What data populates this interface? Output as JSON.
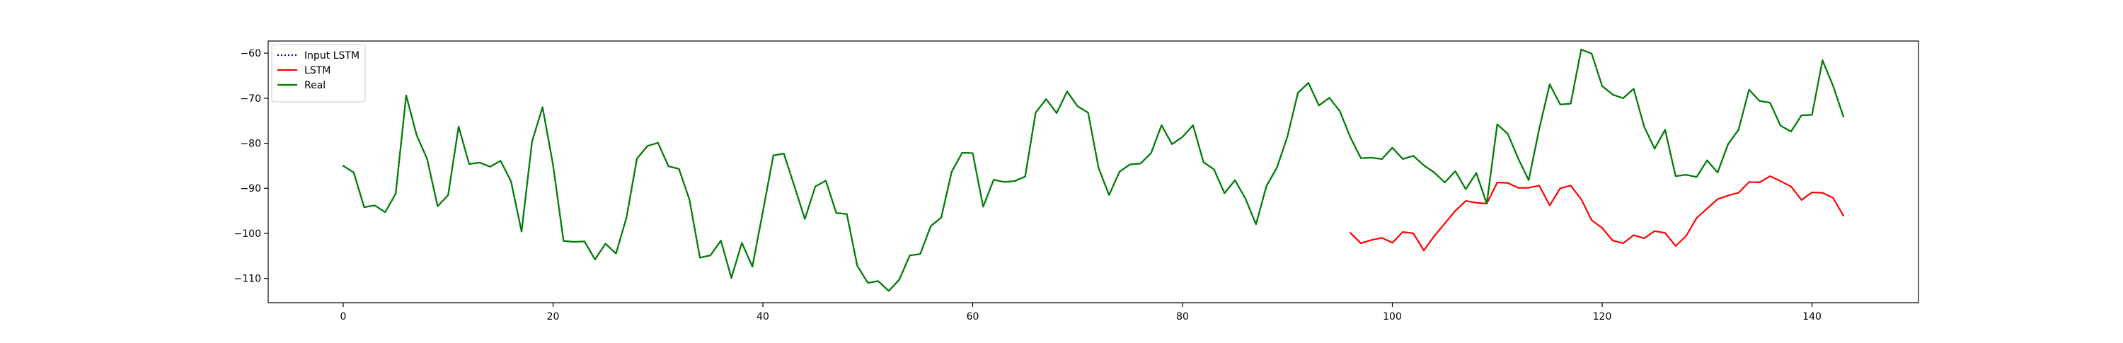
{
  "chart_data": {
    "type": "line",
    "title": "",
    "xlabel": "",
    "ylabel": "",
    "xlim": [
      -7.15,
      150.15
    ],
    "ylim": [
      -115.4,
      -57.3
    ],
    "xticks": [
      0,
      20,
      40,
      60,
      80,
      100,
      120,
      140
    ],
    "yticks": [
      -110,
      -100,
      -90,
      -80,
      -70,
      -60
    ],
    "xtick_labels": [
      "0",
      "20",
      "40",
      "60",
      "80",
      "100",
      "120",
      "140"
    ],
    "ytick_labels": [
      "−110",
      "−100",
      "−90",
      "−80",
      "−70",
      "−60"
    ],
    "grid": false,
    "legend_position": "top-left",
    "series": [
      {
        "name": "Input LSTM",
        "color": "#0000bf",
        "style": "dotted",
        "x_start": 0,
        "values": [
          -85,
          -86.5,
          -94.2,
          -93.8,
          -95.3,
          -91.2,
          -69.4,
          -78.2,
          -83.5,
          -94,
          -91.5,
          -76.3,
          -84.6,
          -84.3,
          -85.2,
          -83.9,
          -88.5,
          -99.6,
          -79.6,
          -72,
          -84.8,
          -101.7,
          -101.9,
          -101.8,
          -105.8,
          -102.3,
          -104.5,
          -96.5,
          -83.4,
          -80.6,
          -79.9,
          -85.1,
          -85.7,
          -92.5,
          -105.4,
          -104.9,
          -101.6,
          -109.9,
          -102.1,
          -107.4,
          -95.2,
          -82.7,
          -82.3,
          -89.5,
          -96.8,
          -89.6,
          -88.3,
          -95.5,
          -95.7,
          -107.2,
          -111,
          -110.6,
          -112.8,
          -110.3,
          -104.9,
          -104.6,
          -98.4,
          -96.5,
          -86.3,
          -82.1,
          -82.2,
          -94.1,
          -88.1,
          -88.6,
          -88.4,
          -87.4,
          -73.2,
          -70.2,
          -73.3,
          -68.5,
          -71.8,
          -73.2,
          -85.5,
          -91.5,
          -86.3,
          -84.7,
          -84.5,
          -82.2,
          -76,
          -80.2,
          -78.6,
          -76,
          -84.2,
          -85.8,
          -91.1,
          -88.2,
          -92.3,
          -98,
          -89.5,
          -85.4,
          -78.5,
          -68.8,
          -66.6,
          -71.6,
          -69.9,
          -72.9,
          -78.7,
          -83.3,
          -83.2,
          -83.5,
          -81,
          -83.5,
          -82.8,
          -84.9,
          -86.5,
          -88.7,
          -86.2,
          -90.2,
          -86.6,
          -93.4,
          -75.8,
          -77.9,
          -83.4,
          -88.2,
          -76.8,
          -66.9,
          -71.4,
          -71.2,
          -59.2,
          -60.1,
          -67.3,
          -69.2,
          -70,
          -67.9,
          -76.3,
          -81.2,
          -77,
          -87.3,
          -87,
          -87.5,
          -83.8,
          -86.5,
          -80.2,
          -77,
          -68.1,
          -70.6,
          -71,
          -76.1,
          -77.4,
          -73.8,
          -73.7,
          -61.6,
          -67.2,
          -74.1
        ]
      },
      {
        "name": "LSTM",
        "color": "#ff0000",
        "style": "solid",
        "x_start": 96,
        "values": [
          -99.9,
          -102.2,
          -101.5,
          -101,
          -102.1,
          -99.7,
          -100,
          -103.8,
          -100.6,
          -97.8,
          -95,
          -92.8,
          -93.2,
          -93.4,
          -88.7,
          -88.8,
          -89.9,
          -89.9,
          -89.4,
          -93.8,
          -90,
          -89.4,
          -92.4,
          -97.1,
          -98.8,
          -101.6,
          -102.2,
          -100.4,
          -101.1,
          -99.5,
          -99.9,
          -102.8,
          -100.6,
          -96.6,
          -94.5,
          -92.4,
          -91.6,
          -91,
          -88.6,
          -88.7,
          -87.3,
          -88.4,
          -89.6,
          -92.6,
          -90.9,
          -91,
          -92.1,
          -96.1
        ]
      },
      {
        "name": "Real",
        "color": "#008000",
        "style": "solid",
        "x_start": 0,
        "values": [
          -85,
          -86.5,
          -94.2,
          -93.8,
          -95.3,
          -91.2,
          -69.4,
          -78.2,
          -83.5,
          -94,
          -91.5,
          -76.3,
          -84.6,
          -84.3,
          -85.2,
          -83.9,
          -88.5,
          -99.6,
          -79.6,
          -72,
          -84.8,
          -101.7,
          -101.9,
          -101.8,
          -105.8,
          -102.3,
          -104.5,
          -96.5,
          -83.4,
          -80.6,
          -79.9,
          -85.1,
          -85.7,
          -92.5,
          -105.4,
          -104.9,
          -101.6,
          -109.9,
          -102.1,
          -107.4,
          -95.2,
          -82.7,
          -82.3,
          -89.5,
          -96.8,
          -89.6,
          -88.3,
          -95.5,
          -95.7,
          -107.2,
          -111,
          -110.6,
          -112.8,
          -110.3,
          -104.9,
          -104.6,
          -98.4,
          -96.5,
          -86.3,
          -82.1,
          -82.2,
          -94.1,
          -88.1,
          -88.6,
          -88.4,
          -87.4,
          -73.2,
          -70.2,
          -73.3,
          -68.5,
          -71.8,
          -73.2,
          -85.5,
          -91.5,
          -86.3,
          -84.7,
          -84.5,
          -82.2,
          -76,
          -80.2,
          -78.6,
          -76,
          -84.2,
          -85.8,
          -91.1,
          -88.2,
          -92.3,
          -98,
          -89.5,
          -85.4,
          -78.5,
          -68.8,
          -66.6,
          -71.6,
          -69.9,
          -72.9,
          -78.7,
          -83.3,
          -83.2,
          -83.5,
          -81,
          -83.5,
          -82.8,
          -84.9,
          -86.5,
          -88.7,
          -86.2,
          -90.2,
          -86.6,
          -93.4,
          -75.8,
          -77.9,
          -83.4,
          -88.2,
          -76.8,
          -66.9,
          -71.4,
          -71.2,
          -59.2,
          -60.1,
          -67.3,
          -69.2,
          -70,
          -67.9,
          -76.3,
          -81.2,
          -77,
          -87.3,
          -87,
          -87.5,
          -83.8,
          -86.5,
          -80.2,
          -77,
          -68.1,
          -70.6,
          -71,
          -76.1,
          -77.4,
          -73.8,
          -73.7,
          -61.6,
          -67.2,
          -74.1
        ]
      }
    ]
  }
}
